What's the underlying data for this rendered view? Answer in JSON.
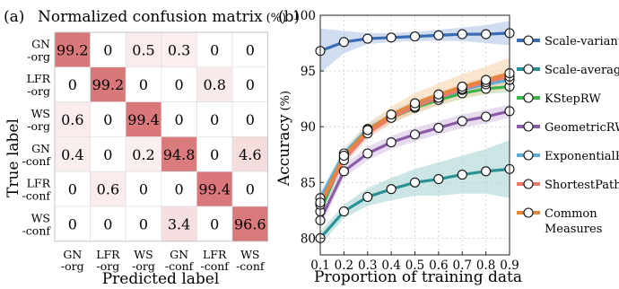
{
  "chart_data": [
    {
      "type": "heatmap",
      "panel_label": "(a)",
      "title": "Normalized confusion matrix",
      "title_unit": "(%)",
      "xlabel": "Predicted label",
      "ylabel": "True label",
      "row_labels": [
        [
          "GN",
          "-org"
        ],
        [
          "LFR",
          "-org"
        ],
        [
          "WS",
          "-org"
        ],
        [
          "GN",
          "-conf"
        ],
        [
          "LFR",
          "-conf"
        ],
        [
          "WS",
          "-conf"
        ]
      ],
      "col_labels": [
        [
          "GN",
          "-org"
        ],
        [
          "LFR",
          "-org"
        ],
        [
          "WS",
          "-org"
        ],
        [
          "GN",
          "-conf"
        ],
        [
          "LFR",
          "-conf"
        ],
        [
          "WS",
          "-conf"
        ]
      ],
      "values": [
        [
          "99.2",
          "0",
          "0.5",
          "0.3",
          "0",
          "0"
        ],
        [
          "0",
          "99.2",
          "0",
          "0",
          "0.8",
          "0"
        ],
        [
          "0.6",
          "0",
          "99.4",
          "0",
          "0",
          "0"
        ],
        [
          "0.4",
          "0",
          "0.2",
          "94.8",
          "0",
          "4.6"
        ],
        [
          "0",
          "0.6",
          "0",
          "0",
          "99.4",
          "0"
        ],
        [
          "0",
          "0",
          "0",
          "3.4",
          "0",
          "96.6"
        ]
      ],
      "colormap": {
        "low": "#ffffff",
        "high": "#d9777a"
      }
    },
    {
      "type": "line",
      "panel_label": "(b)",
      "xlabel": "Proportion of training data",
      "ylabel": "Accuracy",
      "ylabel_unit": "(%)",
      "xlim": [
        0.1,
        0.9
      ],
      "ylim": [
        78.5,
        100
      ],
      "x": [
        0.1,
        0.2,
        0.3,
        0.4,
        0.5,
        0.6,
        0.7,
        0.8,
        0.9
      ],
      "xticks": [
        "0.1",
        "0.2",
        "0.3",
        "0.4",
        "0.5",
        "0.6",
        "0.7",
        "0.8",
        "0.9"
      ],
      "yticks": [
        80,
        85,
        90,
        95,
        100
      ],
      "legend_position": "right",
      "series": [
        {
          "name": "Scale-variant",
          "color": "#3a6cb4",
          "band_color": "#aabfe3",
          "values": [
            96.8,
            97.6,
            97.9,
            98.0,
            98.1,
            98.2,
            98.3,
            98.3,
            98.4
          ],
          "band": [
            [
              94.8,
              98.8
            ],
            [
              96.6,
              98.6
            ],
            [
              97.4,
              98.4
            ],
            [
              97.6,
              98.4
            ],
            [
              97.7,
              98.5
            ],
            [
              97.7,
              98.7
            ],
            [
              97.7,
              98.9
            ],
            [
              97.5,
              99.1
            ],
            [
              97.3,
              99.5
            ]
          ]
        },
        {
          "name": "Scale-average",
          "color": "#2a9294",
          "band_color": "#a3d2d2",
          "values": [
            80.0,
            82.4,
            83.7,
            84.4,
            85.0,
            85.3,
            85.7,
            86.0,
            86.2
          ],
          "band": [
            [
              79.4,
              80.6
            ],
            [
              81.8,
              83.0
            ],
            [
              82.9,
              84.5
            ],
            [
              83.4,
              85.4
            ],
            [
              83.8,
              86.2
            ],
            [
              83.8,
              86.8
            ],
            [
              84.0,
              87.4
            ],
            [
              84.0,
              88.0
            ],
            [
              83.6,
              88.8
            ]
          ]
        },
        {
          "name": "KStepRW",
          "color": "#3bb54a",
          "band_color": "#b4e2b9",
          "values": [
            82.4,
            87.3,
            89.6,
            90.8,
            91.7,
            92.4,
            93.0,
            93.4,
            93.6
          ],
          "band": [
            [
              81.8,
              83.0
            ],
            [
              86.8,
              87.8
            ],
            [
              89.1,
              90.1
            ],
            [
              90.3,
              91.3
            ],
            [
              91.2,
              92.2
            ],
            [
              91.9,
              92.9
            ],
            [
              92.5,
              93.5
            ],
            [
              92.9,
              93.9
            ],
            [
              93.1,
              94.1
            ]
          ]
        },
        {
          "name": "GeometricRW",
          "color": "#8a5ca8",
          "band_color": "#d4c0e2",
          "values": [
            81.6,
            86.0,
            87.6,
            88.6,
            89.3,
            89.9,
            90.5,
            90.9,
            91.4
          ],
          "band": [
            [
              81.0,
              82.2
            ],
            [
              85.4,
              86.6
            ],
            [
              87.0,
              88.2
            ],
            [
              88.0,
              89.2
            ],
            [
              88.7,
              89.9
            ],
            [
              89.3,
              90.5
            ],
            [
              89.9,
              91.1
            ],
            [
              90.3,
              91.5
            ],
            [
              90.8,
              92.0
            ]
          ]
        },
        {
          "name": "ExponentialRW",
          "color": "#5aaed6",
          "band_color": "#bfe0ef",
          "values": [
            83.6,
            87.6,
            89.8,
            91.0,
            91.9,
            92.6,
            93.3,
            93.8,
            94.2
          ],
          "band": [
            [
              83.0,
              84.2
            ],
            [
              87.1,
              88.1
            ],
            [
              89.3,
              90.3
            ],
            [
              90.5,
              91.5
            ],
            [
              91.4,
              92.4
            ],
            [
              92.1,
              93.1
            ],
            [
              92.8,
              93.8
            ],
            [
              93.3,
              94.3
            ],
            [
              93.7,
              94.7
            ]
          ]
        },
        {
          "name": "ShortestPath",
          "color": "#ef7a6a",
          "band_color": "#f8c9c0",
          "values": [
            83.0,
            87.0,
            89.4,
            90.8,
            91.8,
            92.6,
            93.4,
            94.0,
            94.5
          ],
          "band": [
            [
              82.4,
              83.6
            ],
            [
              86.5,
              87.5
            ],
            [
              88.9,
              89.9
            ],
            [
              90.3,
              91.3
            ],
            [
              91.3,
              92.3
            ],
            [
              92.1,
              93.1
            ],
            [
              92.9,
              93.9
            ],
            [
              93.5,
              94.5
            ],
            [
              94.0,
              95.0
            ]
          ]
        },
        {
          "name": "Common Measures",
          "color": "#e3873a",
          "band_color": "#f5cfa8",
          "values": [
            83.2,
            87.4,
            89.7,
            91.1,
            92.1,
            92.9,
            93.6,
            94.2,
            94.8
          ],
          "band": [
            [
              82.6,
              83.8
            ],
            [
              86.9,
              87.9
            ],
            [
              89.1,
              90.3
            ],
            [
              90.4,
              91.8
            ],
            [
              91.2,
              93.0
            ],
            [
              91.9,
              93.9
            ],
            [
              92.5,
              94.7
            ],
            [
              93.0,
              95.4
            ],
            [
              93.4,
              96.2
            ]
          ]
        }
      ]
    }
  ]
}
